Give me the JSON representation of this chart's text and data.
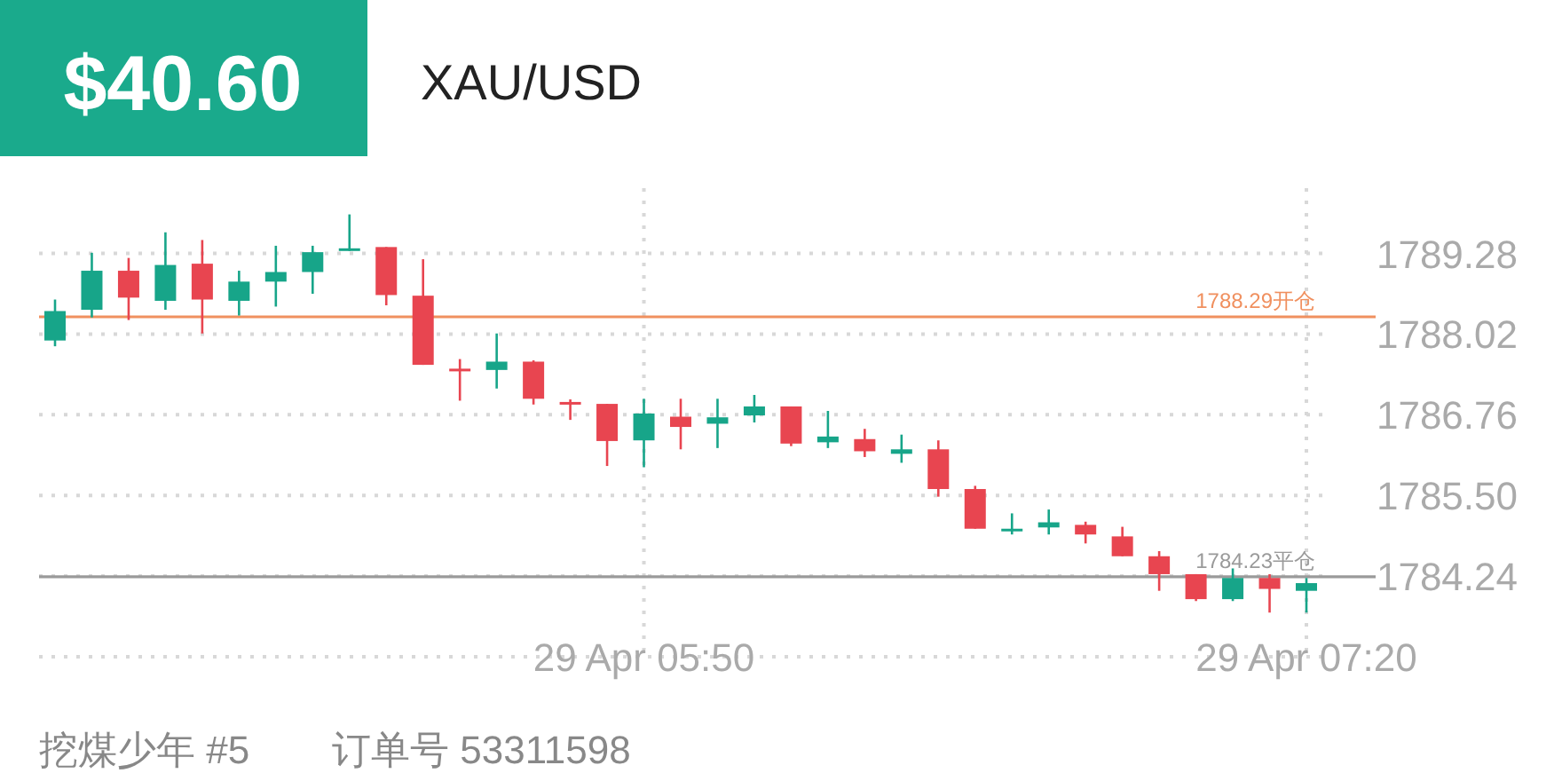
{
  "chart_data": {
    "type": "candlestick",
    "title": "XAU/USD",
    "annotations": [
      "$40.60",
      "挖煤少年 #5",
      "订单号 53311598"
    ],
    "categories": [
      null,
      null,
      null,
      null,
      null,
      null,
      null,
      null,
      null,
      null,
      null,
      null,
      null,
      null,
      null,
      null,
      "29 Apr 05:50",
      null,
      null,
      null,
      null,
      null,
      null,
      null,
      null,
      null,
      null,
      null,
      null,
      null,
      null,
      null,
      null,
      null,
      "29 Apr 07:20"
    ],
    "ohlc": [
      [
        1787.92,
        1788.56,
        1787.83,
        1788.38
      ],
      [
        1788.4,
        1789.29,
        1788.28,
        1789.01
      ],
      [
        1789.01,
        1789.21,
        1788.24,
        1788.59
      ],
      [
        1788.54,
        1789.61,
        1788.4,
        1789.1
      ],
      [
        1789.12,
        1789.49,
        1788.03,
        1788.56
      ],
      [
        1788.54,
        1789.01,
        1788.31,
        1788.84
      ],
      [
        1788.84,
        1789.4,
        1788.45,
        1788.99
      ],
      [
        1788.99,
        1789.4,
        1788.65,
        1789.3
      ],
      [
        1789.32,
        1789.89,
        1789.32,
        1789.36
      ],
      [
        1789.38,
        1789.38,
        1788.47,
        1788.63
      ],
      [
        1788.62,
        1789.19,
        1787.54,
        1787.54
      ],
      [
        1787.48,
        1787.63,
        1786.98,
        1787.44
      ],
      [
        1787.46,
        1788.03,
        1787.17,
        1787.59
      ],
      [
        1787.59,
        1787.61,
        1786.92,
        1787.01
      ],
      [
        1786.96,
        1787.0,
        1786.68,
        1786.93
      ],
      [
        1786.93,
        1786.93,
        1785.96,
        1786.35
      ],
      [
        1786.36,
        1787.01,
        1785.94,
        1786.78
      ],
      [
        1786.73,
        1787.01,
        1786.22,
        1786.57
      ],
      [
        1786.62,
        1787.01,
        1786.24,
        1786.72
      ],
      [
        1786.75,
        1787.07,
        1786.64,
        1786.89
      ],
      [
        1786.89,
        1786.89,
        1786.27,
        1786.31
      ],
      [
        1786.33,
        1786.82,
        1786.24,
        1786.42
      ],
      [
        1786.38,
        1786.54,
        1786.1,
        1786.19
      ],
      [
        1786.15,
        1786.45,
        1786.01,
        1786.22
      ],
      [
        1786.22,
        1786.36,
        1785.48,
        1785.6
      ],
      [
        1785.6,
        1785.65,
        1784.98,
        1784.98
      ],
      [
        1784.96,
        1785.22,
        1784.89,
        1784.98
      ],
      [
        1785.0,
        1785.28,
        1784.89,
        1785.08
      ],
      [
        1785.04,
        1785.09,
        1784.75,
        1784.89
      ],
      [
        1784.86,
        1785.01,
        1784.55,
        1784.55
      ],
      [
        1784.55,
        1784.63,
        1784.01,
        1784.27
      ],
      [
        1784.27,
        1784.27,
        1783.85,
        1783.88
      ],
      [
        1783.88,
        1784.36,
        1783.85,
        1784.21
      ],
      [
        1784.21,
        1784.27,
        1783.67,
        1784.04
      ],
      [
        1784.01,
        1784.21,
        1783.67,
        1784.13
      ]
    ],
    "colors": [
      "#17a589",
      "#17a589",
      "#e84550",
      "#17a589",
      "#e84550",
      "#17a589",
      "#17a589",
      "#17a589",
      "#17a589",
      "#e84550",
      "#e84550",
      "#e84550",
      "#17a589",
      "#e84550",
      "#e84550",
      "#e84550",
      "#17a589",
      "#e84550",
      "#17a589",
      "#17a589",
      "#e84550",
      "#17a589",
      "#e84550",
      "#17a589",
      "#e84550",
      "#e84550",
      "#17a589",
      "#17a589",
      "#e84550",
      "#e84550",
      "#e84550",
      "#e84550",
      "#17a589",
      "#e84550",
      "#17a589"
    ],
    "ylim": [
      1782.98,
      1790.3
    ],
    "yticks": [
      {
        "value": 1782.98,
        "label": null
      },
      1784.24,
      {
        "value": 1785.5,
        "label": "1785.50"
      },
      1786.76,
      1788.02,
      1789.28
    ],
    "ref_lines": [
      {
        "axis": "y",
        "value": 1788.29,
        "label": "1788.29开仓",
        "color": "#f0905f"
      },
      {
        "axis": "y",
        "value": 1784.23,
        "label": "1784.23平仓",
        "color": "#9a9a9a"
      }
    ],
    "grid": true
  }
}
